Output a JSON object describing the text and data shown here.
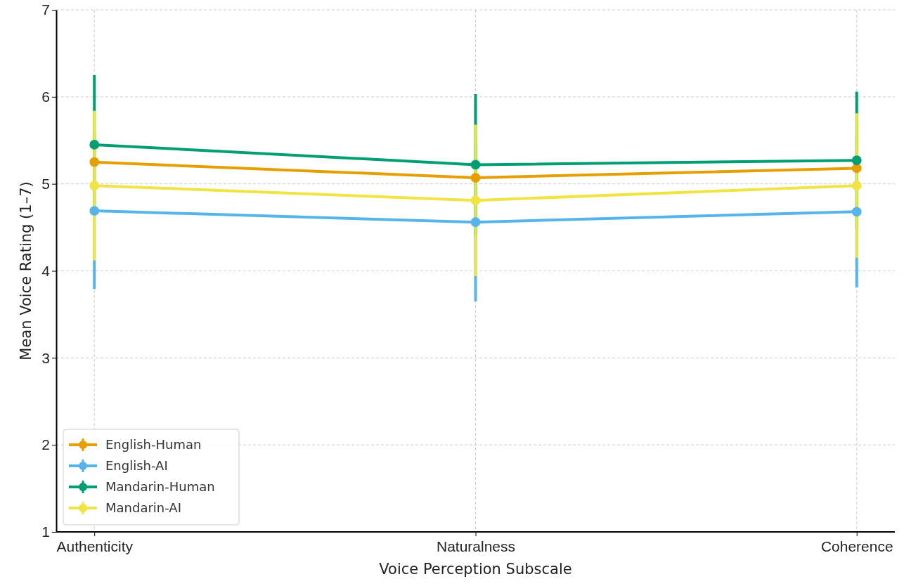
{
  "chart_data": {
    "type": "line",
    "xlabel": "Voice Perception Subscale",
    "ylabel": "Mean Voice Rating (1–7)",
    "categories": [
      "Authenticity",
      "Naturalness",
      "Coherence"
    ],
    "ylim": [
      1,
      7
    ],
    "yticks": [
      1,
      2,
      3,
      4,
      5,
      6,
      7
    ],
    "grid": true,
    "legend": "bottom left",
    "marker": "circle",
    "line_style": "solid",
    "series": [
      {
        "name": "English-Human",
        "color": "#e69f00",
        "values": [
          5.25,
          5.07,
          5.18
        ],
        "errors": [
          null,
          null,
          null
        ]
      },
      {
        "name": "English-AI",
        "color": "#56b4e9",
        "values": [
          4.69,
          4.56,
          4.68
        ],
        "errors": [
          0.9,
          0.91,
          0.87
        ]
      },
      {
        "name": "Mandarin-Human",
        "color": "#009e73",
        "values": [
          5.45,
          5.22,
          5.27
        ],
        "errors": [
          0.8,
          0.81,
          0.79
        ]
      },
      {
        "name": "Mandarin-AI",
        "color": "#f0e442",
        "values": [
          4.98,
          4.81,
          4.98
        ],
        "errors": [
          0.86,
          0.87,
          0.83
        ]
      }
    ]
  }
}
